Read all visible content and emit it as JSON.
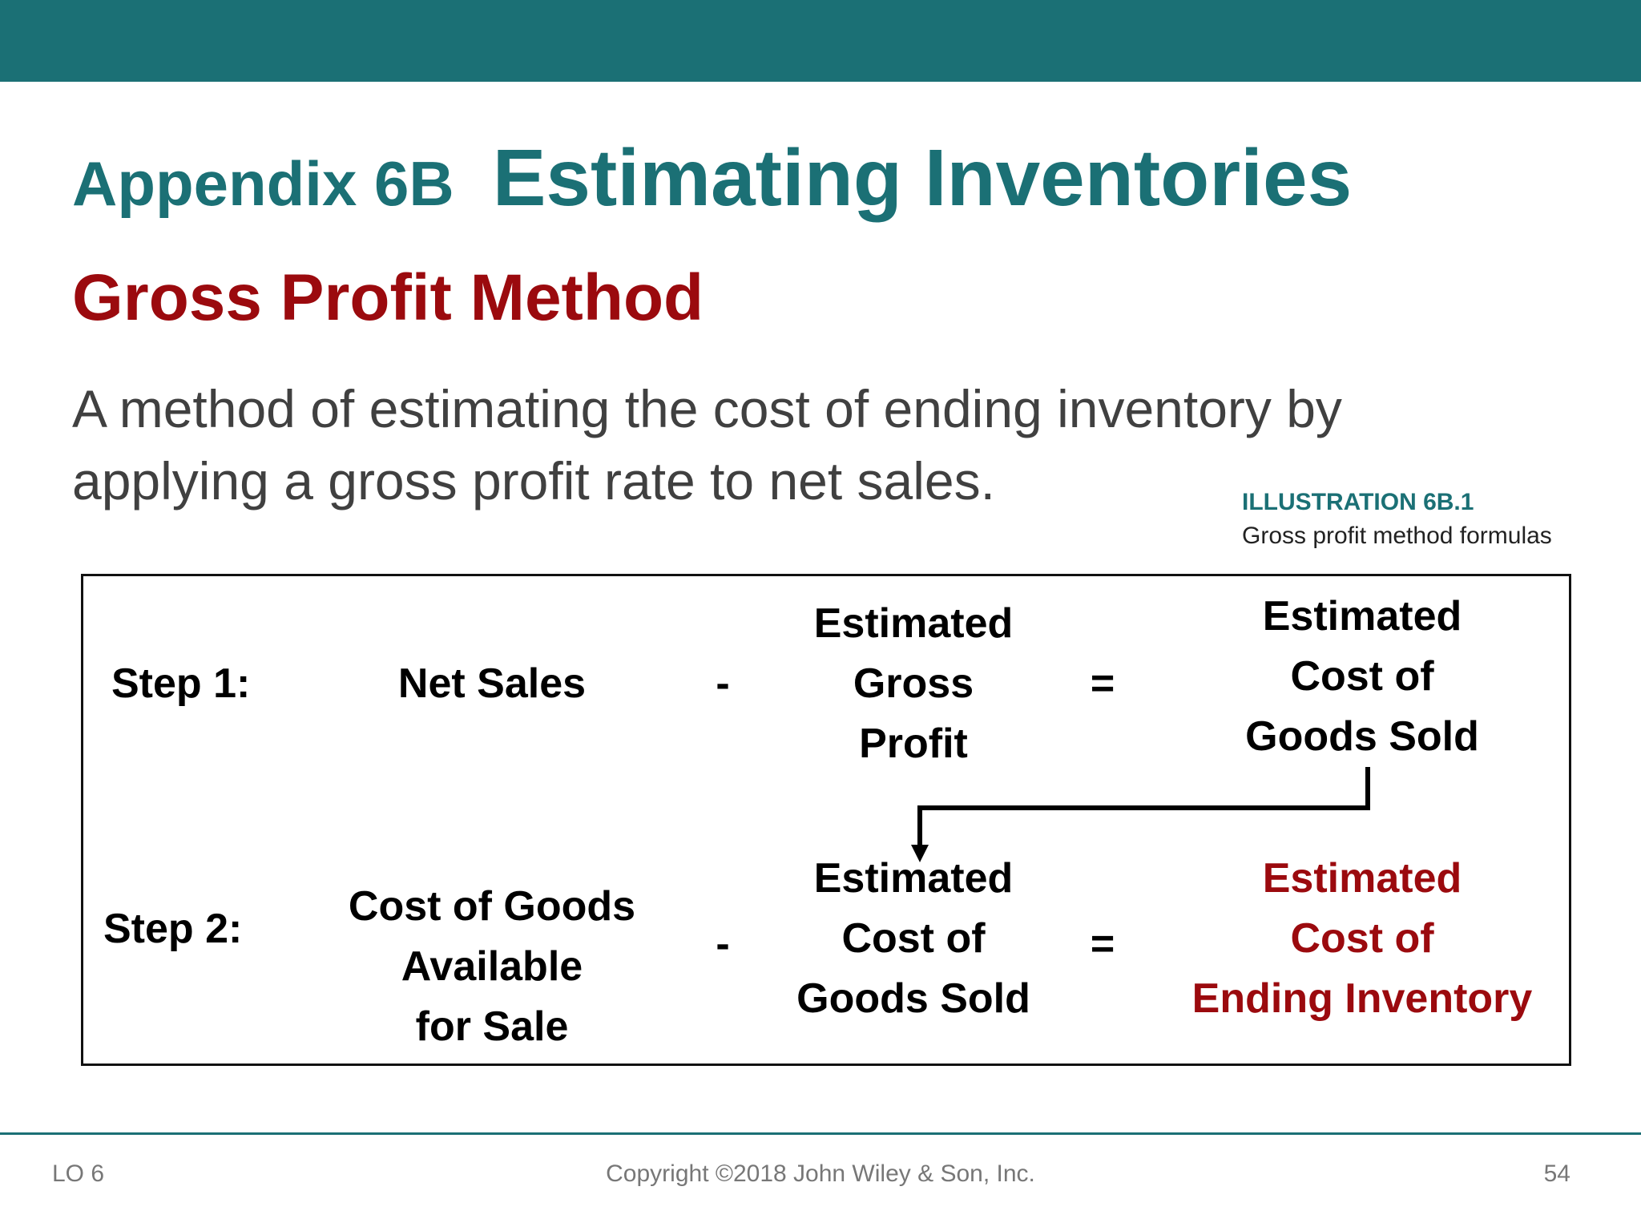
{
  "header": {
    "appendix": "Appendix 6B",
    "title": "Estimating Inventories"
  },
  "section_title": "Gross Profit Method",
  "definition": "A method of estimating the cost of ending inventory by applying a gross profit rate to net sales.",
  "illustration": {
    "number": "ILLUSTRATION 6B.1",
    "caption": "Gross profit method formulas"
  },
  "formula": {
    "step1": {
      "label": "Step 1:",
      "term1": "Net Sales",
      "operator1": "-",
      "term2_lines": [
        "Estimated",
        "Gross",
        "Profit"
      ],
      "operator2": "=",
      "result_lines": [
        "Estimated",
        "Cost of",
        "Goods Sold"
      ]
    },
    "step2": {
      "label": "Step 2:",
      "term1_lines": [
        "Cost of Goods",
        "Available",
        "for Sale"
      ],
      "operator1": "-",
      "term2_lines": [
        "Estimated",
        "Cost of",
        "Goods Sold"
      ],
      "operator2": "=",
      "result_lines": [
        "Estimated",
        "Cost of",
        "Ending Inventory"
      ]
    }
  },
  "footer": {
    "lo": "LO 6",
    "copyright": "Copyright ©2018 John Wiley & Son, Inc.",
    "page": "54"
  },
  "colors": {
    "teal": "#1b7075",
    "dark_red": "#9b0a0e"
  }
}
